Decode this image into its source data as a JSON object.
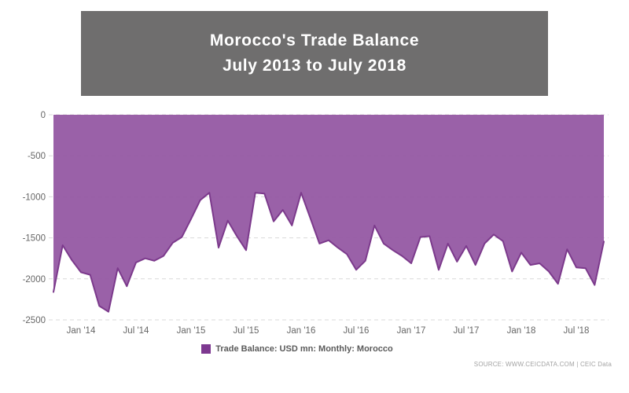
{
  "title": {
    "line1": "Morocco's Trade Balance",
    "line2": "July 2013 to July 2018"
  },
  "legend": {
    "label": "Trade Balance: USD mn: Monthly: Morocco"
  },
  "source": "SOURCE: WWW.CEICDATA.COM | CEIC Data",
  "colors": {
    "title_box_bg": "#6f6e6e",
    "title_text": "#ffffff",
    "area_fill": "#9255a1",
    "line_stroke": "#7c3a8c",
    "legend_marker": "#7d3890",
    "gridline": "#d9d9d9",
    "axis_text": "#666666",
    "legend_text": "#5a5a5a",
    "source_text": "#a3a3a3"
  },
  "chart_data": {
    "type": "area",
    "title": "Morocco's Trade Balance July 2013 to July 2018",
    "series_name": "Trade Balance: USD mn: Monthly: Morocco",
    "units": "USD mn",
    "frequency": "Monthly",
    "country": "Morocco",
    "grid": "horizontal-dashed",
    "legend_position": "bottom",
    "ylim": [
      -2500,
      0
    ],
    "yticks": [
      0,
      -500,
      -1000,
      -1500,
      -2000,
      -2500
    ],
    "xticks": [
      {
        "label": "Jan '14",
        "month_index": 6
      },
      {
        "label": "Jul '14",
        "month_index": 12
      },
      {
        "label": "Jan '15",
        "month_index": 18
      },
      {
        "label": "Jul '15",
        "month_index": 24
      },
      {
        "label": "Jan '16",
        "month_index": 30
      },
      {
        "label": "Jul '16",
        "month_index": 36
      },
      {
        "label": "Jan '17",
        "month_index": 42
      },
      {
        "label": "Jul '17",
        "month_index": 48
      },
      {
        "label": "Jan '18",
        "month_index": 54
      },
      {
        "label": "Jul '18",
        "month_index": 60
      }
    ],
    "x": [
      "2013-07",
      "2013-08",
      "2013-09",
      "2013-10",
      "2013-11",
      "2013-12",
      "2014-01",
      "2014-02",
      "2014-03",
      "2014-04",
      "2014-05",
      "2014-06",
      "2014-07",
      "2014-08",
      "2014-09",
      "2014-10",
      "2014-11",
      "2014-12",
      "2015-01",
      "2015-02",
      "2015-03",
      "2015-04",
      "2015-05",
      "2015-06",
      "2015-07",
      "2015-08",
      "2015-09",
      "2015-10",
      "2015-11",
      "2015-12",
      "2016-01",
      "2016-02",
      "2016-03",
      "2016-04",
      "2016-05",
      "2016-06",
      "2016-07",
      "2016-08",
      "2016-09",
      "2016-10",
      "2016-11",
      "2016-12",
      "2017-01",
      "2017-02",
      "2017-03",
      "2017-04",
      "2017-05",
      "2017-06",
      "2017-07",
      "2017-08",
      "2017-09",
      "2017-10",
      "2017-11",
      "2017-12",
      "2018-01",
      "2018-02",
      "2018-03",
      "2018-04",
      "2018-05",
      "2018-06",
      "2018-07"
    ],
    "values": [
      -2160,
      -1590,
      -1770,
      -1920,
      -1950,
      -2330,
      -2400,
      -1870,
      -2090,
      -1800,
      -1750,
      -1780,
      -1720,
      -1560,
      -1490,
      -1270,
      -1040,
      -950,
      -1620,
      -1290,
      -1480,
      -1650,
      -950,
      -960,
      -1300,
      -1160,
      -1350,
      -950,
      -1260,
      -1570,
      -1530,
      -1620,
      -1700,
      -1890,
      -1780,
      -1350,
      -1570,
      -1650,
      -1720,
      -1810,
      -1490,
      -1480,
      -1890,
      -1570,
      -1790,
      -1600,
      -1830,
      -1570,
      -1460,
      -1540,
      -1910,
      -1680,
      -1830,
      -1810,
      -1910,
      -2060,
      -1640,
      -1860,
      -1870,
      -2075,
      -1545
    ]
  }
}
